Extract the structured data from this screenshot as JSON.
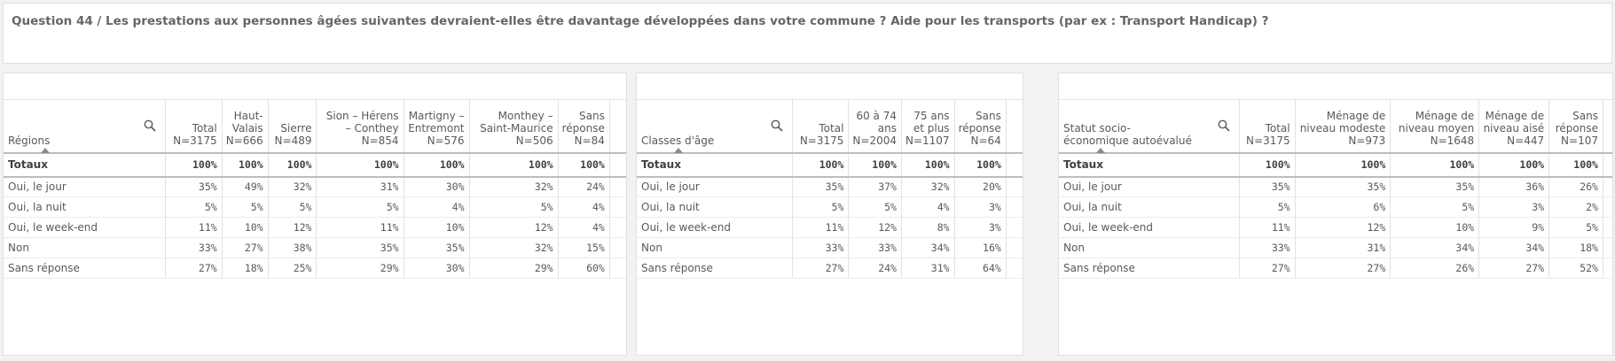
{
  "title": "Question 44 / Les prestations aux personnes âgées suivantes devraient-elles être davantage développées dans votre commune ? Aide pour les transports (par ex : Transport Handicap) ?",
  "tables": [
    {
      "dimension": "Régions",
      "columns": [
        "Total\nN=3175",
        "Haut-\nValais\nN=666",
        "Sierre\nN=489",
        "Sion – Hérens\n– Conthey\nN=854",
        "Martigny –\nEntremont\nN=576",
        "Monthey –\nSaint-Maurice\nN=506",
        "Sans\nréponse\nN=84"
      ],
      "total_label": "Totaux",
      "totals": [
        "100%",
        "100%",
        "100%",
        "100%",
        "100%",
        "100%",
        "100%"
      ],
      "rows": [
        {
          "label": "Oui, le jour",
          "values": [
            "35%",
            "49%",
            "32%",
            "31%",
            "30%",
            "32%",
            "24%"
          ]
        },
        {
          "label": "Oui, la nuit",
          "values": [
            "5%",
            "5%",
            "5%",
            "5%",
            "4%",
            "5%",
            "4%"
          ]
        },
        {
          "label": "Oui, le week-end",
          "values": [
            "11%",
            "10%",
            "12%",
            "11%",
            "10%",
            "12%",
            "4%"
          ]
        },
        {
          "label": "Non",
          "values": [
            "33%",
            "27%",
            "38%",
            "35%",
            "35%",
            "32%",
            "15%"
          ]
        },
        {
          "label": "Sans réponse",
          "values": [
            "27%",
            "18%",
            "25%",
            "29%",
            "30%",
            "29%",
            "60%"
          ]
        }
      ]
    },
    {
      "dimension": "Classes d'âge",
      "columns": [
        "Total\nN=3175",
        "60 à 74\nans\nN=2004",
        "75 ans\net plus\nN=1107",
        "Sans\nréponse\nN=64"
      ],
      "total_label": "Totaux",
      "totals": [
        "100%",
        "100%",
        "100%",
        "100%"
      ],
      "rows": [
        {
          "label": "Oui, le jour",
          "values": [
            "35%",
            "37%",
            "32%",
            "20%"
          ]
        },
        {
          "label": "Oui, la nuit",
          "values": [
            "5%",
            "5%",
            "4%",
            "3%"
          ]
        },
        {
          "label": "Oui, le week-end",
          "values": [
            "11%",
            "12%",
            "8%",
            "3%"
          ]
        },
        {
          "label": "Non",
          "values": [
            "33%",
            "33%",
            "34%",
            "16%"
          ]
        },
        {
          "label": "Sans réponse",
          "values": [
            "27%",
            "24%",
            "31%",
            "64%"
          ]
        }
      ]
    },
    {
      "dimension": "Statut socio-\néconomique autoévalué",
      "columns": [
        "Total\nN=3175",
        "Ménage de\nniveau modeste\nN=973",
        "Ménage de\nniveau moyen\nN=1648",
        "Ménage de\nniveau aisé\nN=447",
        "Sans\nréponse\nN=107"
      ],
      "total_label": "Totaux",
      "totals": [
        "100%",
        "100%",
        "100%",
        "100%",
        "100%"
      ],
      "rows": [
        {
          "label": "Oui, le jour",
          "values": [
            "35%",
            "35%",
            "35%",
            "36%",
            "26%"
          ]
        },
        {
          "label": "Oui, la nuit",
          "values": [
            "5%",
            "6%",
            "5%",
            "3%",
            "2%"
          ]
        },
        {
          "label": "Oui, le week-end",
          "values": [
            "11%",
            "12%",
            "10%",
            "9%",
            "5%"
          ]
        },
        {
          "label": "Non",
          "values": [
            "33%",
            "31%",
            "34%",
            "34%",
            "18%"
          ]
        },
        {
          "label": "Sans réponse",
          "values": [
            "27%",
            "27%",
            "26%",
            "27%",
            "52%"
          ]
        }
      ]
    }
  ]
}
